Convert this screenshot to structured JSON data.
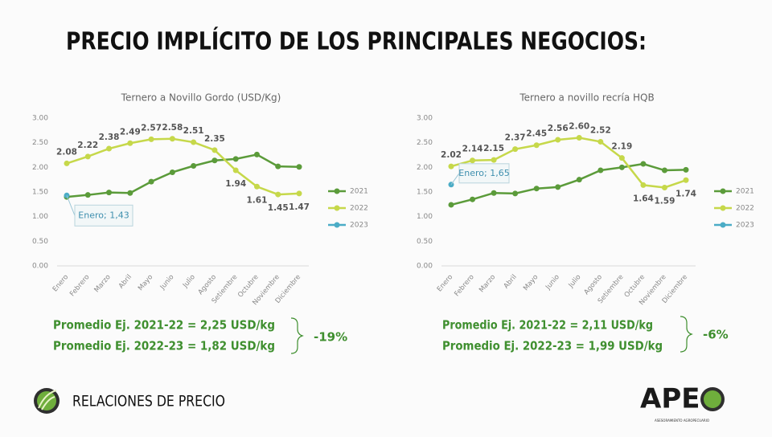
{
  "title": "PRECIO IMPLÍCITO DE LOS PRINCIPALES NEGOCIOS:",
  "chart_data": [
    {
      "type": "line",
      "title": "Ternero a Novillo Gordo (USD/Kg)",
      "categories": [
        "Enero",
        "Febrero",
        "Marzo",
        "Abril",
        "Mayo",
        "Junio",
        "Julio",
        "Agosto",
        "Setiembre",
        "Octubre",
        "Noviembre",
        "Diciembre"
      ],
      "ylim": [
        0,
        3
      ],
      "yticks": [
        {
          "value": 0,
          "label": "0.00"
        },
        {
          "value": 0.5,
          "label": "0.50"
        },
        {
          "value": 1,
          "label": "1.00"
        },
        {
          "value": 1.5,
          "label": "1.50"
        },
        {
          "value": 2,
          "label": "2.00"
        },
        {
          "value": 2.5,
          "label": "2.50"
        },
        {
          "value": 3,
          "label": "3.00"
        }
      ],
      "grid": false,
      "legend": "right",
      "series": [
        {
          "name": "2021",
          "color": "#5b9b3a",
          "values": [
            1.4,
            1.44,
            1.49,
            1.48,
            1.71,
            1.9,
            2.03,
            2.14,
            2.17,
            2.26,
            2.02,
            2.01
          ]
        },
        {
          "name": "2022",
          "color": "#c6d84a",
          "values": [
            2.08,
            2.22,
            2.38,
            2.49,
            2.57,
            2.58,
            2.51,
            2.35,
            1.94,
            1.61,
            1.45,
            1.47
          ],
          "value_labels": [
            "2.08",
            "2.22",
            "2.38",
            "2.49",
            "2.57",
            "2.58",
            "2.51",
            "2.35",
            "1.94",
            "1.61",
            "1.45",
            "1.47"
          ]
        },
        {
          "name": "2023",
          "color": "#4bacc6",
          "values": [
            1.43,
            null,
            null,
            null,
            null,
            null,
            null,
            null,
            null,
            null,
            null,
            null
          ]
        }
      ],
      "annotation": "Enero; 1,43"
    },
    {
      "type": "line",
      "title": "Ternero a novillo recría HQB",
      "categories": [
        "Enero",
        "Febrero",
        "Marzo",
        "Abril",
        "Mayo",
        "Junio",
        "Julio",
        "Agosto",
        "Setiembre",
        "Octubre",
        "Noviembre",
        "Diciembre"
      ],
      "ylim": [
        0,
        3
      ],
      "yticks": [
        {
          "value": 0,
          "label": "0.00"
        },
        {
          "value": 0.5,
          "label": "0.50"
        },
        {
          "value": 1,
          "label": "1.00"
        },
        {
          "value": 1.5,
          "label": "1.50"
        },
        {
          "value": 2,
          "label": "2.00"
        },
        {
          "value": 2.5,
          "label": "2.50"
        },
        {
          "value": 3,
          "label": "3.00"
        }
      ],
      "grid": false,
      "legend": "right",
      "series": [
        {
          "name": "2021",
          "color": "#5b9b3a",
          "values": [
            1.24,
            1.35,
            1.48,
            1.47,
            1.57,
            1.6,
            1.75,
            1.94,
            2.0,
            2.07,
            1.94,
            1.95
          ]
        },
        {
          "name": "2022",
          "color": "#c6d84a",
          "values": [
            2.02,
            2.14,
            2.15,
            2.37,
            2.45,
            2.56,
            2.6,
            2.52,
            2.19,
            1.64,
            1.59,
            1.74
          ],
          "value_labels": [
            "2.02",
            "2.14",
            "2.15",
            "2.37",
            "2.45",
            "2.56",
            "2.60",
            "2.52",
            "2.19",
            "1.64",
            "1.59",
            "1.74"
          ]
        },
        {
          "name": "2023",
          "color": "#4bacc6",
          "values": [
            1.65,
            null,
            null,
            null,
            null,
            null,
            null,
            null,
            null,
            null,
            null,
            null
          ]
        }
      ],
      "annotation": "Enero; 1,65"
    }
  ],
  "summaries": [
    {
      "lines": [
        "Promedio Ej. 2021-22 = 2,25 USD/kg",
        "Promedio Ej. 2022-23 = 1,82 USD/kg"
      ],
      "change": "-19%"
    },
    {
      "lines": [
        "Promedio Ej. 2021-22 = 2,11 USD/kg",
        "Promedio Ej. 2022-23 = 1,99 USD/kg"
      ],
      "change": "-6%"
    }
  ],
  "footer": "RELACIONES DE PRECIO",
  "logo": {
    "name": "APE",
    "tagline": "ASESORAMIENTO AGROPECUARIO"
  }
}
